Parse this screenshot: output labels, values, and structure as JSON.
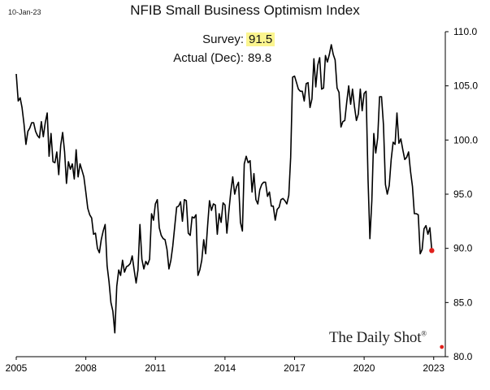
{
  "date_stamp": "10-Jan-23",
  "annotations": {
    "survey_label": "Survey:",
    "survey_value": "91.5",
    "actual_label": "Actual (Dec):",
    "actual_value": "89.8"
  },
  "brand": {
    "name": "The Daily Shot",
    "mark": "®"
  },
  "colors": {
    "line": "#000000",
    "last_point": "#e0201b",
    "highlight": "#fbf58f"
  },
  "chart_data": {
    "type": "line",
    "title": "NFIB Small Business Optimism Index",
    "xlabel": "",
    "ylabel": "",
    "x_ticks": [
      "2005",
      "2008",
      "2011",
      "2014",
      "2017",
      "2020",
      "2023"
    ],
    "y_ticks": [
      "110.0",
      "105.0",
      "100.0",
      "95.0",
      "90.0",
      "85.0",
      "80.0"
    ],
    "xlim": [
      2005,
      2023.5
    ],
    "ylim": [
      80,
      110
    ],
    "series": [
      {
        "name": "NFIB Small Business Optimism Index",
        "start": "2005-01",
        "frequency": "monthly",
        "values": [
          106.1,
          103.6,
          103.9,
          103.0,
          101.5,
          99.6,
          100.8,
          101.1,
          101.6,
          101.6,
          100.8,
          100.4,
          100.2,
          101.7,
          100.3,
          101.6,
          102.5,
          98.5,
          100.6,
          98.0,
          97.9,
          98.9,
          96.8,
          99.5,
          100.7,
          98.9,
          96.0,
          98.0,
          97.3,
          97.8,
          96.4,
          99.1,
          96.6,
          97.8,
          97.2,
          96.6,
          95.2,
          93.7,
          93.1,
          92.8,
          91.3,
          91.4,
          90.0,
          89.6,
          90.8,
          91.6,
          92.2,
          88.4,
          86.9,
          85.0,
          84.2,
          82.2,
          86.5,
          88.0,
          87.5,
          88.9,
          87.8,
          88.3,
          88.4,
          88.6,
          89.3,
          88.0,
          86.8,
          88.0,
          92.2,
          89.0,
          88.1,
          88.8,
          88.5,
          89.0,
          93.2,
          92.6,
          94.1,
          94.5,
          91.9,
          91.2,
          90.9,
          90.8,
          89.9,
          88.1,
          88.9,
          90.2,
          92.0,
          93.8,
          93.9,
          94.3,
          92.5,
          94.5,
          94.4,
          91.4,
          91.2,
          92.9,
          92.8,
          93.1,
          87.5,
          88.0,
          88.9,
          90.8,
          89.5,
          92.1,
          94.4,
          93.5,
          94.1,
          94.0,
          91.3,
          93.2,
          92.4,
          94.2,
          94.0,
          91.4,
          93.4,
          95.2,
          96.6,
          95.0,
          95.7,
          96.1,
          92.4,
          91.6,
          97.8,
          98.5,
          97.9,
          98.1,
          95.2,
          96.9,
          94.5,
          94.1,
          95.4,
          95.9,
          96.1,
          96.1,
          94.8,
          95.2,
          93.9,
          93.9,
          92.6,
          93.6,
          93.8,
          94.5,
          94.6,
          94.4,
          94.1,
          94.9,
          98.4,
          105.8,
          105.9,
          105.3,
          104.7,
          104.5,
          104.5,
          103.6,
          105.2,
          105.3,
          103.0,
          103.8,
          107.5,
          104.9,
          106.9,
          107.6,
          104.7,
          104.8,
          107.8,
          107.2,
          107.9,
          108.8,
          107.9,
          107.4,
          104.8,
          104.4,
          101.2,
          101.7,
          101.8,
          103.5,
          105.0,
          103.3,
          104.7,
          103.1,
          101.8,
          102.4,
          104.7,
          102.7,
          104.3,
          104.5,
          96.4,
          90.9,
          94.4,
          100.6,
          98.8,
          100.2,
          104.0,
          104.0,
          101.4,
          95.9,
          95.0,
          95.8,
          98.2,
          99.8,
          99.6,
          102.5,
          99.7,
          100.1,
          99.1,
          98.2,
          98.4,
          98.9,
          97.1,
          95.7,
          93.2,
          93.2,
          93.1,
          89.5,
          89.9,
          91.8,
          92.1,
          91.3,
          91.9,
          89.8
        ]
      }
    ],
    "last_value": {
      "label": "Dec 2022",
      "value": 89.8
    }
  }
}
